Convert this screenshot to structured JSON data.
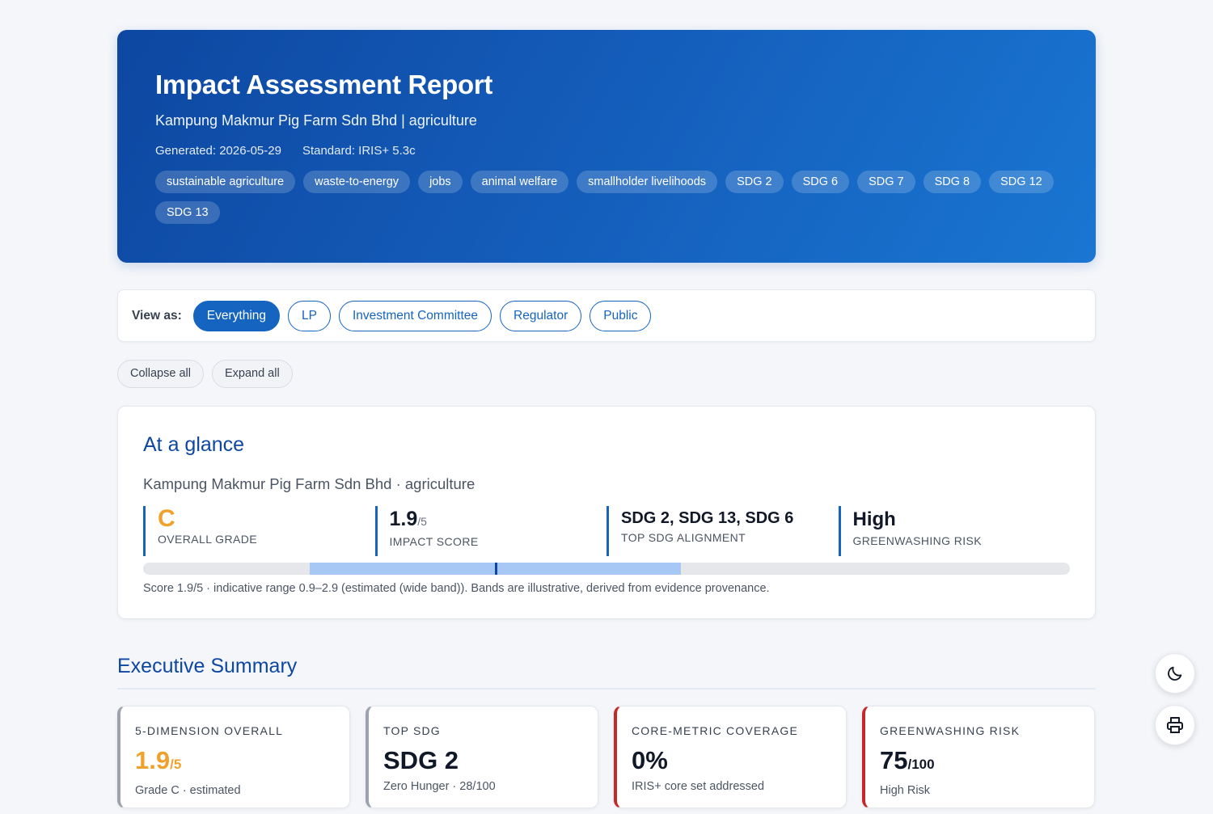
{
  "header": {
    "title": "Impact Assessment Report",
    "subtitle": "Kampung Makmur Pig Farm Sdn Bhd | agriculture",
    "generated": "Generated: 2026-05-29",
    "standard": "Standard: IRIS+ 5.3c",
    "tags": [
      "sustainable agriculture",
      "waste-to-energy",
      "jobs",
      "animal welfare",
      "smallholder livelihoods",
      "SDG 2",
      "SDG 6",
      "SDG 7",
      "SDG 8",
      "SDG 12",
      "SDG 13"
    ]
  },
  "view_as": {
    "label": "View as:",
    "options": [
      "Everything",
      "LP",
      "Investment Committee",
      "Regulator",
      "Public"
    ],
    "selected": "Everything"
  },
  "controls": {
    "collapse": "Collapse all",
    "expand": "Expand all"
  },
  "glance": {
    "title": "At a glance",
    "firm": "Kampung Makmur Pig Farm Sdn Bhd · agriculture",
    "grade": "C",
    "grade_label": "OVERALL GRADE",
    "score": "1.9",
    "score_max": "/5",
    "score_label": "IMPACT SCORE",
    "sdg": "SDG 2, SDG 13, SDG 6",
    "sdg_label": "TOP SDG ALIGNMENT",
    "risk": "High",
    "risk_label": "GREENWASHING RISK",
    "range": {
      "low": 0.9,
      "high": 2.9,
      "score": 1.9,
      "min": 0,
      "max": 5
    },
    "note": "Score 1.9/5 · indicative range 0.9–2.9 (estimated (wide band)). Bands are illustrative, derived from evidence provenance."
  },
  "executive": {
    "title": "Executive Summary",
    "cards": [
      {
        "label": "5-DIMENSION OVERALL",
        "value": "1.9",
        "unit": "/5",
        "sub": "Grade C · estimated"
      },
      {
        "label": "TOP SDG",
        "value": "SDG 2",
        "unit": "",
        "sub": "Zero Hunger · 28/100"
      },
      {
        "label": "CORE-METRIC COVERAGE",
        "value": "0%",
        "unit": "",
        "sub": "IRIS+ core set addressed"
      },
      {
        "label": "GREENWASHING RISK",
        "value": "75",
        "unit": "/100",
        "sub": "High Risk"
      }
    ]
  },
  "colors": {
    "accent": "#1565c0",
    "grade": "#f0a12c",
    "risk": "#c62828"
  },
  "icons": {
    "theme_toggle": "moon-icon",
    "print": "printer-icon"
  }
}
